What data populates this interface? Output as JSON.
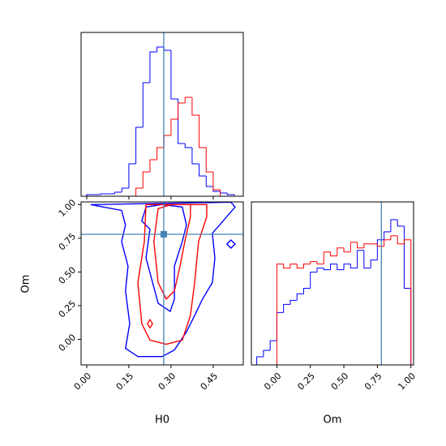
{
  "chart_data": {
    "type": "corner",
    "truth_color": "#4682b4",
    "params": [
      {
        "label": "H0",
        "lim": [
          -0.02,
          0.557
        ],
        "ticks": [
          {
            "value": 0,
            "label": "0.00"
          },
          {
            "value": 0.15,
            "label": "0.15"
          },
          {
            "value": 0.3,
            "label": "0.30"
          },
          {
            "value": 0.45,
            "label": "0.45"
          }
        ],
        "truth": 0.274,
        "bins": [
          0,
          0.025,
          0.05,
          0.075,
          0.1,
          0.125,
          0.15,
          0.175,
          0.2,
          0.225,
          0.25,
          0.275,
          0.3,
          0.325,
          0.35,
          0.375,
          0.4,
          0.425,
          0.45,
          0.475,
          0.5,
          0.525
        ],
        "hist_ylim": [
          0,
          202
        ],
        "series": [
          {
            "color": "#0000ff",
            "values": [
              2,
              2,
              3,
              3,
              5,
              10,
              40,
              85,
              140,
              178,
              184,
              180,
              120,
              65,
              60,
              40,
              25,
              12,
              6,
              4,
              2
            ]
          },
          {
            "color": "#ff0000",
            "values": [
              0,
              0,
              0,
              0,
              0,
              0,
              0,
              10,
              30,
              45,
              60,
              75,
              95,
              115,
              122,
              100,
              60,
              30,
              8,
              0,
              0
            ]
          }
        ]
      },
      {
        "label": "Om",
        "lim": [
          -0.19,
          1.02
        ],
        "ticks": [
          {
            "value": 0,
            "label": "0.00"
          },
          {
            "value": 0.25,
            "label": "0.25"
          },
          {
            "value": 0.5,
            "label": "0.50"
          },
          {
            "value": 0.75,
            "label": "0.75"
          },
          {
            "value": 1,
            "label": "1.00"
          }
        ],
        "truth": 0.78,
        "bins": [
          -0.15,
          -0.1,
          -0.05,
          0,
          0.05,
          0.1,
          0.15,
          0.2,
          0.25,
          0.3,
          0.35,
          0.4,
          0.45,
          0.5,
          0.55,
          0.6,
          0.65,
          0.7,
          0.75,
          0.8,
          0.85,
          0.9,
          0.95,
          1
        ],
        "hist_ylim": [
          0,
          202
        ],
        "series": [
          {
            "color": "#0000ff",
            "values": [
              10,
              18,
              30,
              65,
              75,
              80,
              88,
              95,
              115,
              120,
              118,
              125,
              118,
              125,
              120,
              142,
              120,
              130,
              155,
              165,
              180,
              172,
              95
            ]
          },
          {
            "color": "#ff0000",
            "values": [
              0,
              0,
              0,
              125,
              120,
              125,
              120,
              125,
              128,
              125,
              140,
              135,
              145,
              140,
              152,
              145,
              150,
              150,
              147,
              155,
              160,
              150,
              155
            ]
          }
        ]
      }
    ],
    "contours": [
      {
        "color": "#0000ff",
        "x": [
          0.014,
          0.124,
          0.138,
          0.124,
          0.147,
          0.138,
          0.153,
          0.138,
          0.182,
          0.268,
          0.312,
          0.355,
          0.384,
          0.412,
          0.447,
          0.456,
          0.447,
          0.485,
          0.528,
          0.513
        ],
        "y": [
          1.0,
          0.957,
          0.848,
          0.726,
          0.543,
          0.36,
          0.116,
          -0.067,
          -0.128,
          -0.128,
          -0.079,
          0.055,
          0.177,
          0.299,
          0.421,
          0.604,
          0.787,
          0.878,
          0.982,
          1.018
        ]
      },
      {
        "color": "#0000ff",
        "x": [
          0.211,
          0.196,
          0.225,
          0.211,
          0.254,
          0.297,
          0.312,
          0.312,
          0.34,
          0.355,
          0.34,
          0.268
        ],
        "y": [
          0.982,
          0.878,
          0.817,
          0.604,
          0.268,
          0.207,
          0.299,
          0.543,
          0.726,
          0.848,
          0.982,
          1.0
        ]
      },
      {
        "color": "#0000ff",
        "x": [
          0.499,
          0.513,
          0.528,
          0.513
        ],
        "y": [
          0.707,
          0.737,
          0.707,
          0.677
        ]
      },
      {
        "color": "#ff0000",
        "x": [
          0.211,
          0.205,
          0.182,
          0.196,
          0.225,
          0.283,
          0.34,
          0.369,
          0.384,
          0.398,
          0.427,
          0.427
        ],
        "y": [
          1.0,
          0.726,
          0.421,
          0.116,
          -0.006,
          -0.037,
          -0.006,
          0.177,
          0.421,
          0.726,
          0.909,
          1.0
        ]
      },
      {
        "color": "#ff0000",
        "x": [
          0.254,
          0.239,
          0.254,
          0.283,
          0.312,
          0.332,
          0.349,
          0.369,
          0.369,
          0.3
        ],
        "y": [
          0.97,
          0.726,
          0.421,
          0.299,
          0.36,
          0.543,
          0.726,
          0.909,
          1.0,
          1.0
        ]
      },
      {
        "color": "#ff0000",
        "x": [
          0.225,
          0.234,
          0.225,
          0.216
        ],
        "y": [
          0.146,
          0.116,
          0.085,
          0.116
        ]
      }
    ]
  }
}
